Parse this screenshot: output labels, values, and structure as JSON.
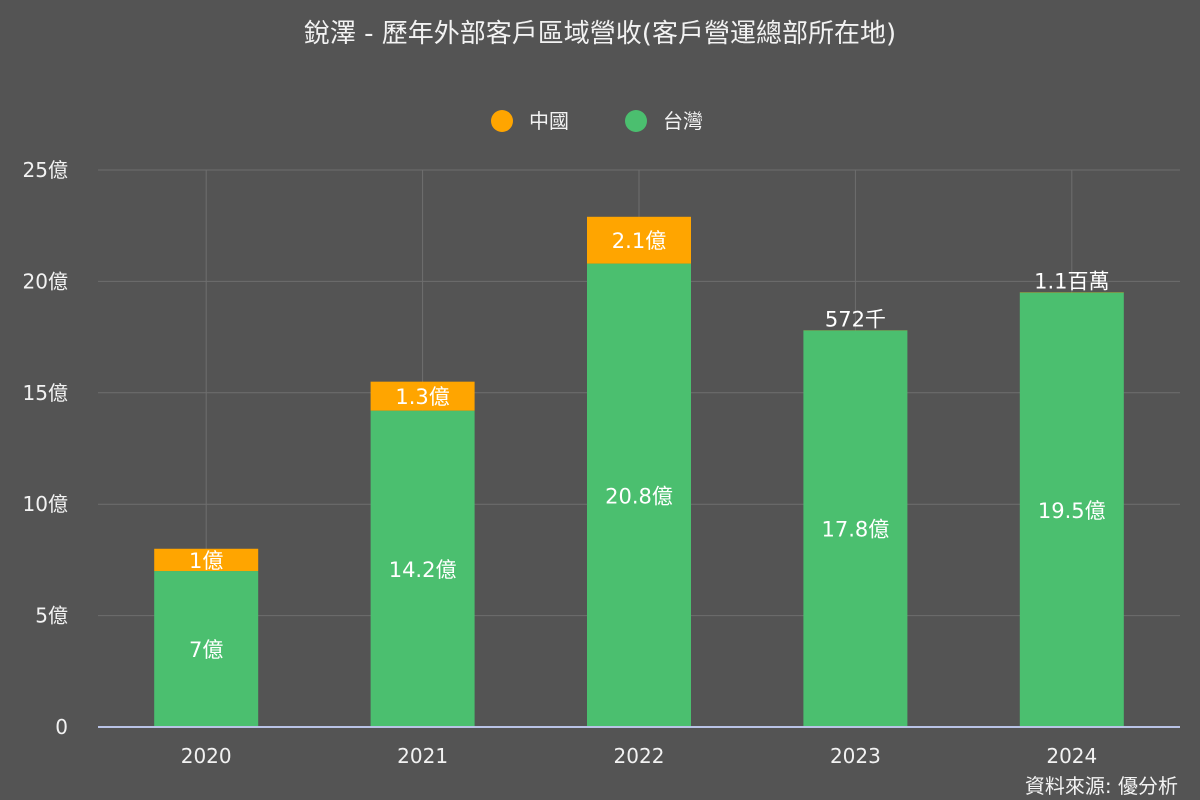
{
  "chart_data": {
    "type": "bar",
    "stacked": true,
    "title": "銳澤 - 歷年外部客戶區域營收(客戶營運總部所在地)",
    "categories": [
      "2020",
      "2021",
      "2022",
      "2023",
      "2024"
    ],
    "series": [
      {
        "name": "台灣",
        "color": "#4bbf6f",
        "values": [
          7.0,
          14.2,
          20.8,
          17.8,
          19.5
        ],
        "labels": [
          "7億",
          "14.2億",
          "20.8億",
          "17.8億",
          "19.5億"
        ]
      },
      {
        "name": "中國",
        "color": "#ffa500",
        "values": [
          1.0,
          1.3,
          2.1,
          0.00572,
          0.011
        ],
        "labels": [
          "1億",
          "1.3億",
          "2.1億",
          "572千",
          "1.1百萬"
        ]
      }
    ],
    "legend_order": [
      "中國",
      "台灣"
    ],
    "legend_position": "top-center",
    "ylim": [
      0,
      25
    ],
    "yticks": [
      0,
      5,
      10,
      15,
      20,
      25
    ],
    "ytick_labels": [
      "0",
      "5億",
      "10億",
      "15億",
      "20億",
      "25億"
    ],
    "grid": true
  },
  "source_text": "資料來源: 優分析",
  "colors": {
    "background": "#545454",
    "grid": "#6e6e6e",
    "axis": "#b9c3e6"
  }
}
